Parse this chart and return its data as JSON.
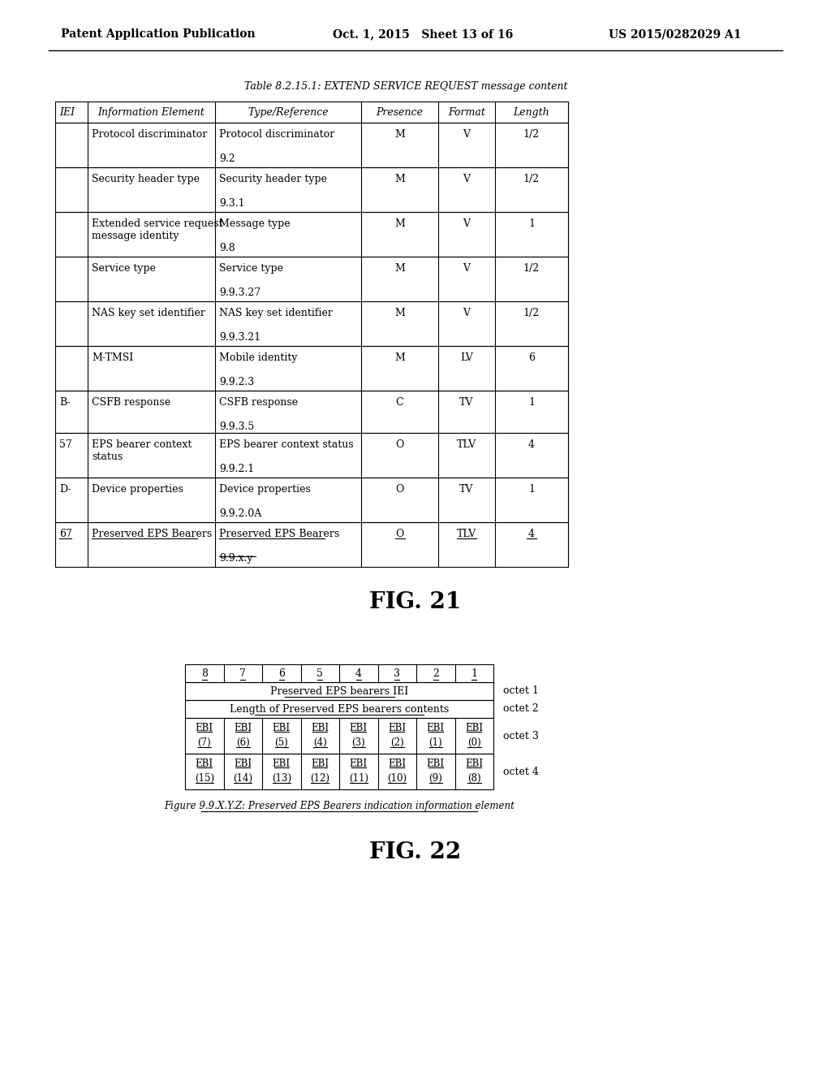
{
  "header_left": "Patent Application Publication",
  "header_mid": "Oct. 1, 2015   Sheet 13 of 16",
  "header_right": "US 2015/0282029 A1",
  "fig21_title": "Table 8.2.15.1: EXTEND SERVICE REQUEST message content",
  "fig21_cols": [
    "IEI",
    "Information Element",
    "Type/Reference",
    "Presence",
    "Format",
    "Length"
  ],
  "fig21_rows": [
    [
      "",
      "Protocol discriminator",
      "Protocol discriminator\n\n9.2",
      "M",
      "V",
      "1/2"
    ],
    [
      "",
      "Security header type",
      "Security header type\n\n9.3.1",
      "M",
      "V",
      "1/2"
    ],
    [
      "",
      "Extended service request\nmessage identity",
      "Message type\n\n9.8",
      "M",
      "V",
      "1"
    ],
    [
      "",
      "Service type",
      "Service type\n\n9.9.3.27",
      "M",
      "V",
      "1/2"
    ],
    [
      "",
      "NAS key set identifier",
      "NAS key set identifier\n\n9.9.3.21",
      "M",
      "V",
      "1/2"
    ],
    [
      "",
      "M-TMSI",
      "Mobile identity\n\n9.9.2.3",
      "M",
      "LV",
      "6"
    ],
    [
      "B-",
      "CSFB response",
      "CSFB response\n\n9.9.3.5",
      "C",
      "TV",
      "1"
    ],
    [
      "57",
      "EPS bearer context\nstatus",
      "EPS bearer context status\n\n9.9.2.1",
      "O",
      "TLV",
      "4"
    ],
    [
      "D-",
      "Device properties",
      "Device properties\n\n9.9.2.0A",
      "O",
      "TV",
      "1"
    ],
    [
      "67",
      "Preserved EPS Bearers",
      "Preserved EPS Bearers\n\n9.9.x.y",
      "O",
      "TLV",
      "4"
    ]
  ],
  "fig21_label": "FIG. 21",
  "fig22_col_headers": [
    "8",
    "7",
    "6",
    "5",
    "4",
    "3",
    "2",
    "1"
  ],
  "fig22_row1": "Preserved EPS bearers IEI",
  "fig22_row2": "Length of Preserved EPS bearers contents",
  "fig22_row3_top": [
    "EBI",
    "EBI",
    "EBI",
    "EBI",
    "EBI",
    "EBI",
    "EBI",
    "EBI"
  ],
  "fig22_row3_bot": [
    "(7)",
    "(6)",
    "(5)",
    "(4)",
    "(3)",
    "(2)",
    "(1)",
    "(0)"
  ],
  "fig22_row4_top": [
    "EBI",
    "EBI",
    "EBI",
    "EBI",
    "EBI",
    "EBI",
    "EBI",
    "EBI"
  ],
  "fig22_row4_bot": [
    "(15)",
    "(14)",
    "(13)",
    "(12)",
    "(11)",
    "(10)",
    "(9)",
    "(8)"
  ],
  "fig22_octet_labels": [
    "octet 1",
    "octet 2",
    "octet 3",
    "octet 4"
  ],
  "fig22_caption": "Figure 9.9.X.Y.Z: Preserved EPS Bearers indication information element",
  "fig22_label": "FIG. 22",
  "bg_color": "#ffffff",
  "text_color": "#000000",
  "line_color": "#000000"
}
